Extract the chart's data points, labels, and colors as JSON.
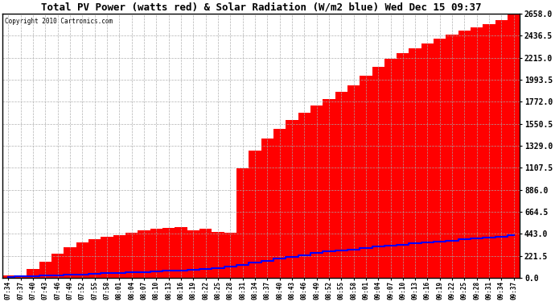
{
  "title": "Total PV Power (watts red) & Solar Radiation (W/m2 blue) Wed Dec 15 09:37",
  "copyright_text": "Copyright 2010 Cartronics.com",
  "ylim": [
    0.0,
    2658.0
  ],
  "yticks": [
    0.0,
    221.5,
    443.0,
    664.5,
    886.0,
    1107.5,
    1329.0,
    1550.5,
    1772.0,
    1993.5,
    2215.0,
    2436.5,
    2658.0
  ],
  "background_color": "#ffffff",
  "plot_bg_color": "#ffffff",
  "grid_color": "#aaaaaa",
  "red_color": "#ff0000",
  "blue_color": "#0000ff",
  "time_labels": [
    "07:34",
    "07:37",
    "07:40",
    "07:43",
    "07:46",
    "07:49",
    "07:52",
    "07:55",
    "07:58",
    "08:01",
    "08:04",
    "08:07",
    "08:10",
    "08:13",
    "08:16",
    "08:19",
    "08:22",
    "08:25",
    "08:28",
    "08:31",
    "08:34",
    "08:37",
    "08:40",
    "08:43",
    "08:46",
    "08:49",
    "08:52",
    "08:55",
    "08:58",
    "09:01",
    "09:04",
    "09:07",
    "09:10",
    "09:13",
    "09:16",
    "09:19",
    "09:22",
    "09:25",
    "09:28",
    "09:31",
    "09:34",
    "09:37"
  ],
  "pv_power": [
    20,
    25,
    90,
    160,
    240,
    310,
    360,
    390,
    410,
    430,
    455,
    475,
    490,
    500,
    510,
    480,
    490,
    460,
    450,
    1100,
    1280,
    1400,
    1500,
    1590,
    1660,
    1730,
    1800,
    1870,
    1940,
    2030,
    2120,
    2200,
    2260,
    2310,
    2360,
    2410,
    2450,
    2490,
    2520,
    2550,
    2590,
    2658
  ],
  "solar_rad": [
    10,
    12,
    15,
    20,
    25,
    30,
    35,
    40,
    45,
    50,
    55,
    60,
    65,
    70,
    75,
    80,
    90,
    100,
    110,
    130,
    150,
    170,
    190,
    210,
    230,
    250,
    265,
    275,
    285,
    300,
    315,
    325,
    335,
    345,
    355,
    365,
    375,
    385,
    395,
    405,
    415,
    430
  ]
}
